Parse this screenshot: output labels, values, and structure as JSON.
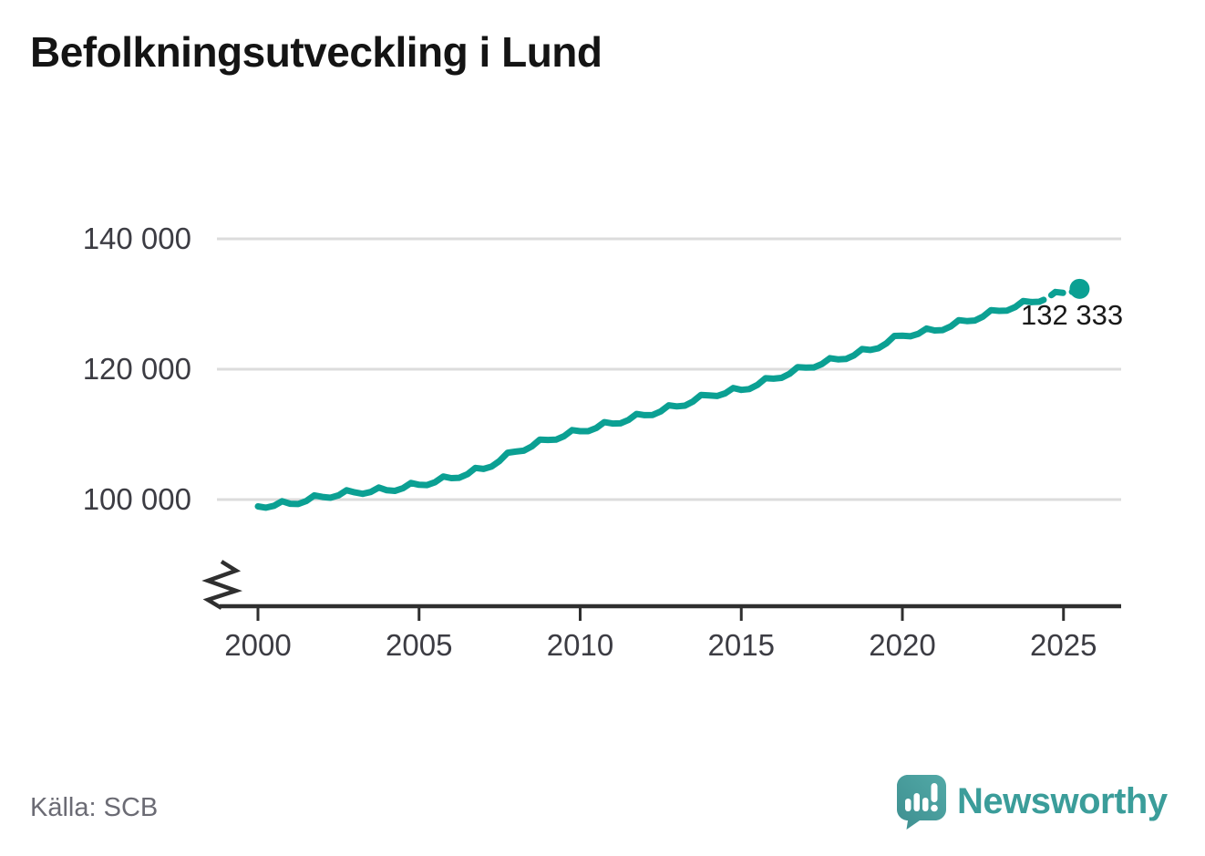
{
  "title": "Befolkningsutveckling i Lund",
  "source": {
    "label": "Källa: SCB"
  },
  "branding": {
    "name": "Newsworthy",
    "icon": "speech-bubble-bar-chart-icon",
    "color": "#3b9d9a"
  },
  "colors": {
    "line": "#0ba093",
    "grid": "#dcdcdc",
    "axis": "#2f2f2f",
    "tick_label": "#3c3c43",
    "title": "#141414",
    "source_text": "#6b6b74",
    "annotation": "#191919"
  },
  "chart_data": {
    "type": "line",
    "title": "Befolkningsutveckling i Lund",
    "xlabel": "",
    "ylabel": "",
    "grid": "horizontal",
    "x_range": [
      2000,
      2025.5
    ],
    "y_axis_break": true,
    "y_ticks": [
      {
        "value": 100000,
        "label": "100 000"
      },
      {
        "value": 120000,
        "label": "120 000"
      },
      {
        "value": 140000,
        "label": "140 000"
      }
    ],
    "x_ticks": [
      {
        "value": 2000,
        "label": "2000"
      },
      {
        "value": 2005,
        "label": "2005"
      },
      {
        "value": 2010,
        "label": "2010"
      },
      {
        "value": 2015,
        "label": "2015"
      },
      {
        "value": 2020,
        "label": "2020"
      },
      {
        "value": 2025,
        "label": "2025"
      }
    ],
    "x": [
      2000,
      2001,
      2002,
      2003,
      2004,
      2005,
      2006,
      2007,
      2008,
      2009,
      2010,
      2011,
      2012,
      2013,
      2014,
      2015,
      2016,
      2017,
      2018,
      2019,
      2020,
      2021,
      2022,
      2023,
      2024,
      2025
    ],
    "values": [
      98950,
      99350,
      100400,
      101100,
      101420,
      102260,
      103290,
      104700,
      107350,
      109150,
      110490,
      111670,
      112950,
      114290,
      115970,
      116830,
      118540,
      120250,
      121510,
      122950,
      125150,
      125940,
      127380,
      128950,
      130300,
      131700
    ],
    "seasonal_offsets": [
      0,
      -300,
      -100,
      500
    ],
    "tail_points": [
      {
        "x": 2025.25,
        "value": 131850
      },
      {
        "x": 2025.5,
        "value": 132333
      }
    ],
    "dashed_from": 2024,
    "final_point": {
      "x": 2025.5,
      "value": 132333,
      "label": "132 333"
    }
  }
}
